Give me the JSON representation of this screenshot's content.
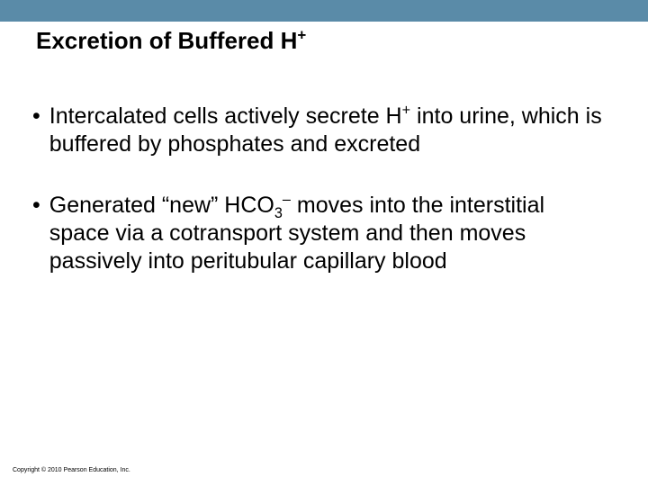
{
  "colors": {
    "header_bar": "#5a8ba8",
    "background": "#ffffff",
    "text": "#000000"
  },
  "typography": {
    "title_fontsize": 26,
    "title_weight": "bold",
    "body_fontsize": 25,
    "copyright_fontsize": 7,
    "font_family": "Arial"
  },
  "title": {
    "pre": "Excretion of Buffered H",
    "sup": "+"
  },
  "bullets": [
    {
      "segments": [
        {
          "t": "Intercalated cells actively secrete H"
        },
        {
          "t": "+",
          "sup": true
        },
        {
          "t": " into urine, which is buffered by phosphates and excreted"
        }
      ]
    },
    {
      "segments": [
        {
          "t": "Generated “new” HCO"
        },
        {
          "t": "3",
          "sub": true
        },
        {
          "t": "–",
          "sup": true
        },
        {
          "t": " moves into the interstitial space via a cotransport system and then moves passively into peritubular capillary blood"
        }
      ]
    }
  ],
  "copyright": "Copyright © 2010 Pearson Education, Inc."
}
